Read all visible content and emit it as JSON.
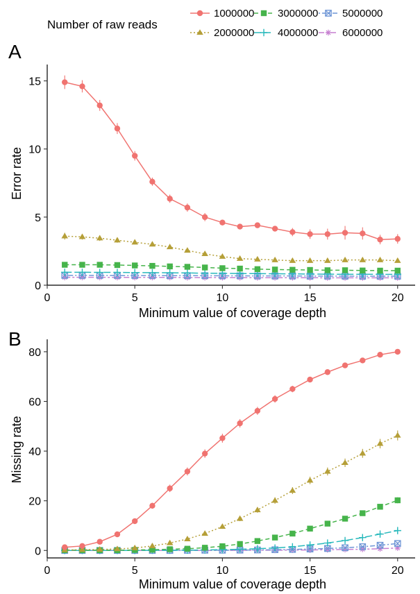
{
  "legend": {
    "title": "Number of raw reads",
    "entries": [
      {
        "label": "1000000",
        "color": "#f07370",
        "shape": "circle",
        "dash": "solid"
      },
      {
        "label": "2000000",
        "color": "#b59f38",
        "shape": "triangle",
        "dash": "dotted"
      },
      {
        "label": "3000000",
        "color": "#46b44b",
        "shape": "square",
        "dash": "dashed"
      },
      {
        "label": "4000000",
        "color": "#28b9bc",
        "shape": "plus",
        "dash": "longdash"
      },
      {
        "label": "5000000",
        "color": "#6f96d6",
        "shape": "boxcross",
        "dash": "dotdash"
      },
      {
        "label": "6000000",
        "color": "#c67fd0",
        "shape": "asterisk",
        "dash": "twodash"
      }
    ]
  },
  "chart_data": [
    {
      "panel_label": "A",
      "type": "line",
      "xlabel": "Minimum value of coverage depth",
      "ylabel": "Error rate",
      "xlim": [
        0,
        21
      ],
      "ylim": [
        0,
        16.2
      ],
      "xticks": [
        0,
        5,
        10,
        15,
        20
      ],
      "yticks": [
        0,
        5,
        10,
        15
      ],
      "x": [
        1,
        2,
        3,
        4,
        5,
        6,
        7,
        8,
        9,
        10,
        11,
        12,
        13,
        14,
        15,
        16,
        17,
        18,
        19,
        20
      ],
      "series": [
        {
          "name": "1000000",
          "values": [
            14.9,
            14.6,
            13.2,
            11.5,
            9.5,
            7.6,
            6.35,
            5.7,
            5.0,
            4.6,
            4.3,
            4.4,
            4.15,
            3.9,
            3.75,
            3.75,
            3.85,
            3.8,
            3.35,
            3.4
          ],
          "error": [
            0.5,
            0.45,
            0.4,
            0.4,
            0.35,
            0.3,
            0.3,
            0.3,
            0.3,
            0.2,
            0.15,
            0.15,
            0.15,
            0.3,
            0.35,
            0.4,
            0.5,
            0.45,
            0.35,
            0.35
          ]
        },
        {
          "name": "2000000",
          "values": [
            3.6,
            3.55,
            3.45,
            3.3,
            3.15,
            3.0,
            2.8,
            2.55,
            2.3,
            2.1,
            1.95,
            1.9,
            1.85,
            1.8,
            1.8,
            1.8,
            1.85,
            1.85,
            1.85,
            1.8
          ],
          "error": [
            0.25,
            0.2,
            0.2,
            0.18,
            0.15,
            0.15,
            0.12,
            0.1,
            0.1,
            0.1,
            0.08,
            0.08,
            0.08,
            0.08,
            0.08,
            0.08,
            0.08,
            0.08,
            0.08,
            0.08
          ]
        },
        {
          "name": "3000000",
          "values": [
            1.5,
            1.5,
            1.5,
            1.48,
            1.45,
            1.42,
            1.38,
            1.35,
            1.3,
            1.25,
            1.22,
            1.18,
            1.15,
            1.13,
            1.12,
            1.1,
            1.1,
            1.08,
            1.07,
            1.07
          ],
          "error": [
            0.05,
            0.05,
            0.05,
            0.05,
            0.05,
            0.05,
            0.05,
            0.05,
            0.05,
            0.05,
            0.05,
            0.05,
            0.05,
            0.05,
            0.05,
            0.05,
            0.05,
            0.05,
            0.05,
            0.05
          ]
        },
        {
          "name": "4000000",
          "values": [
            0.95,
            0.95,
            0.94,
            0.94,
            0.93,
            0.92,
            0.91,
            0.9,
            0.88,
            0.87,
            0.86,
            0.85,
            0.84,
            0.83,
            0.82,
            0.81,
            0.8,
            0.8,
            0.8,
            0.79
          ],
          "error": [
            0.04,
            0.04,
            0.04,
            0.04,
            0.04,
            0.04,
            0.04,
            0.04,
            0.04,
            0.04,
            0.04,
            0.04,
            0.04,
            0.04,
            0.04,
            0.04,
            0.04,
            0.04,
            0.04,
            0.04
          ]
        },
        {
          "name": "5000000",
          "values": [
            0.72,
            0.72,
            0.72,
            0.71,
            0.71,
            0.71,
            0.7,
            0.7,
            0.7,
            0.69,
            0.69,
            0.68,
            0.68,
            0.68,
            0.67,
            0.67,
            0.67,
            0.66,
            0.66,
            0.66
          ],
          "error": [
            0.03,
            0.03,
            0.03,
            0.03,
            0.03,
            0.03,
            0.03,
            0.03,
            0.03,
            0.03,
            0.03,
            0.03,
            0.03,
            0.03,
            0.03,
            0.03,
            0.03,
            0.03,
            0.03,
            0.03
          ]
        },
        {
          "name": "6000000",
          "values": [
            0.58,
            0.58,
            0.58,
            0.57,
            0.57,
            0.57,
            0.57,
            0.56,
            0.56,
            0.56,
            0.56,
            0.55,
            0.55,
            0.55,
            0.55,
            0.54,
            0.54,
            0.54,
            0.54,
            0.54
          ],
          "error": [
            0.03,
            0.03,
            0.03,
            0.03,
            0.03,
            0.03,
            0.03,
            0.03,
            0.03,
            0.03,
            0.03,
            0.03,
            0.03,
            0.03,
            0.03,
            0.03,
            0.03,
            0.03,
            0.03,
            0.03
          ]
        }
      ]
    },
    {
      "panel_label": "B",
      "type": "line",
      "xlabel": "Minimum value of coverage depth",
      "ylabel": "Missing rate",
      "xlim": [
        0,
        21
      ],
      "ylim": [
        -3,
        85
      ],
      "xticks": [
        0,
        5,
        10,
        15,
        20
      ],
      "yticks": [
        0,
        20,
        40,
        60,
        80
      ],
      "x": [
        1,
        2,
        3,
        4,
        5,
        6,
        7,
        8,
        9,
        10,
        11,
        12,
        13,
        14,
        15,
        16,
        17,
        18,
        19,
        20
      ],
      "series": [
        {
          "name": "1000000",
          "values": [
            1.3,
            1.8,
            3.5,
            6.5,
            11.8,
            18.0,
            25.0,
            31.8,
            39.0,
            45.2,
            51.2,
            56.2,
            61.0,
            65.0,
            68.8,
            71.8,
            74.5,
            76.5,
            78.8,
            80.0
          ],
          "error": [
            0.3,
            0.3,
            0.4,
            0.6,
            0.9,
            1.2,
            1.5,
            1.6,
            1.7,
            1.8,
            1.7,
            1.6,
            1.5,
            1.3,
            1.1,
            1.0,
            0.9,
            0.8,
            0.7,
            0.6
          ]
        },
        {
          "name": "2000000",
          "values": [
            0.2,
            0.3,
            0.4,
            0.6,
            1.0,
            1.8,
            3.0,
            4.6,
            6.8,
            9.6,
            12.8,
            16.3,
            20.1,
            24.1,
            28.2,
            31.8,
            35.3,
            39.1,
            43.0,
            46.3
          ],
          "error": [
            0.1,
            0.1,
            0.1,
            0.2,
            0.2,
            0.3,
            0.4,
            0.5,
            0.7,
            0.9,
            1.0,
            1.1,
            1.3,
            1.4,
            1.5,
            1.6,
            1.7,
            1.8,
            1.9,
            2.0
          ]
        },
        {
          "name": "3000000",
          "values": [
            0.1,
            0.1,
            0.1,
            0.1,
            0.2,
            0.3,
            0.5,
            0.7,
            1.1,
            1.7,
            2.6,
            3.8,
            5.2,
            6.8,
            8.8,
            10.8,
            12.8,
            15.0,
            17.6,
            20.2
          ],
          "error": [
            0.05,
            0.05,
            0.05,
            0.05,
            0.05,
            0.1,
            0.1,
            0.1,
            0.2,
            0.2,
            0.3,
            0.3,
            0.4,
            0.5,
            0.6,
            0.7,
            0.8,
            0.9,
            1.0,
            1.2
          ]
        },
        {
          "name": "4000000",
          "values": [
            0.0,
            0.0,
            0.0,
            0.0,
            0.0,
            0.05,
            0.1,
            0.1,
            0.2,
            0.3,
            0.5,
            0.7,
            1.0,
            1.5,
            2.2,
            3.0,
            4.0,
            5.2,
            6.6,
            8.0
          ],
          "error": [
            0.05,
            0.05,
            0.05,
            0.05,
            0.05,
            0.05,
            0.05,
            0.1,
            0.1,
            0.1,
            0.2,
            0.2,
            0.3,
            0.4,
            0.5,
            0.6,
            0.7,
            0.8,
            0.9,
            1.0
          ]
        },
        {
          "name": "5000000",
          "values": [
            0.0,
            0.0,
            0.0,
            0.0,
            0.0,
            0.0,
            0.0,
            0.05,
            0.1,
            0.1,
            0.15,
            0.2,
            0.3,
            0.4,
            0.6,
            0.8,
            1.1,
            1.5,
            2.1,
            2.8
          ],
          "error": [
            0.05,
            0.05,
            0.05,
            0.05,
            0.05,
            0.05,
            0.05,
            0.05,
            0.05,
            0.05,
            0.05,
            0.1,
            0.1,
            0.1,
            0.2,
            0.2,
            0.3,
            0.3,
            0.4,
            0.5
          ]
        },
        {
          "name": "6000000",
          "values": [
            0.0,
            0.0,
            0.0,
            0.0,
            0.0,
            0.0,
            0.0,
            0.0,
            0.0,
            0.05,
            0.05,
            0.1,
            0.1,
            0.15,
            0.2,
            0.3,
            0.4,
            0.5,
            0.7,
            1.0
          ],
          "error": [
            0.05,
            0.05,
            0.05,
            0.05,
            0.05,
            0.05,
            0.05,
            0.05,
            0.05,
            0.05,
            0.05,
            0.05,
            0.05,
            0.05,
            0.1,
            0.1,
            0.1,
            0.2,
            0.2,
            0.3
          ]
        }
      ]
    }
  ]
}
